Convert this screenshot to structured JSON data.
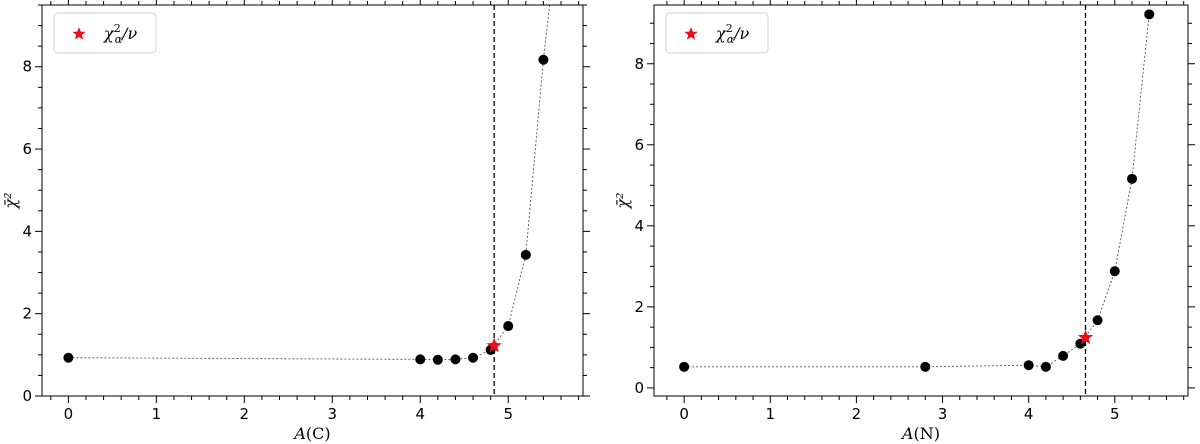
{
  "chart_data": [
    {
      "type": "scatter",
      "title": "",
      "xlabel": "A(C)",
      "xlabel_italic": "A",
      "xlabel_rest": "(C)",
      "ylabel": "χ̄²",
      "xlim": [
        -0.3,
        5.85
      ],
      "ylim": [
        0,
        9.5
      ],
      "xticks": [
        0,
        1,
        2,
        3,
        4,
        5
      ],
      "yticks": [
        0,
        2,
        4,
        6,
        8
      ],
      "points": [
        {
          "x": 0.0,
          "y": 0.93
        },
        {
          "x": 4.0,
          "y": 0.89
        },
        {
          "x": 4.2,
          "y": 0.88
        },
        {
          "x": 4.4,
          "y": 0.89
        },
        {
          "x": 4.6,
          "y": 0.93
        },
        {
          "x": 4.8,
          "y": 1.12
        },
        {
          "x": 5.0,
          "y": 1.7
        },
        {
          "x": 5.2,
          "y": 3.43
        },
        {
          "x": 5.4,
          "y": 8.17
        }
      ],
      "curve_extra": [
        {
          "x": 5.47,
          "y": 9.5
        }
      ],
      "star": {
        "x": 4.84,
        "y": 1.22
      },
      "vline_x": 4.84,
      "legend_label": "χ²α/ν",
      "legend_position": "upper-left",
      "colors": {
        "points": "#000000",
        "star": "#e8101b",
        "line": "#555555"
      }
    },
    {
      "type": "scatter",
      "title": "",
      "xlabel": "A(N)",
      "xlabel_italic": "A",
      "xlabel_rest": "(N)",
      "ylabel": "χ̄²",
      "xlim": [
        -0.35,
        5.85
      ],
      "ylim": [
        -0.2,
        9.45
      ],
      "xticks": [
        0,
        1,
        2,
        3,
        4,
        5
      ],
      "yticks": [
        0,
        2,
        4,
        6,
        8
      ],
      "points": [
        {
          "x": 0.0,
          "y": 0.52
        },
        {
          "x": 2.8,
          "y": 0.52
        },
        {
          "x": 4.0,
          "y": 0.56
        },
        {
          "x": 4.2,
          "y": 0.52
        },
        {
          "x": 4.4,
          "y": 0.79
        },
        {
          "x": 4.6,
          "y": 1.09
        },
        {
          "x": 4.8,
          "y": 1.67
        },
        {
          "x": 5.0,
          "y": 2.88
        },
        {
          "x": 5.2,
          "y": 5.16
        },
        {
          "x": 5.4,
          "y": 9.22
        }
      ],
      "curve_extra": [],
      "star": {
        "x": 4.66,
        "y": 1.24
      },
      "vline_x": 4.66,
      "legend_label": "χ²α/ν",
      "legend_position": "upper-left",
      "colors": {
        "points": "#000000",
        "star": "#e8101b",
        "line": "#555555"
      }
    }
  ]
}
